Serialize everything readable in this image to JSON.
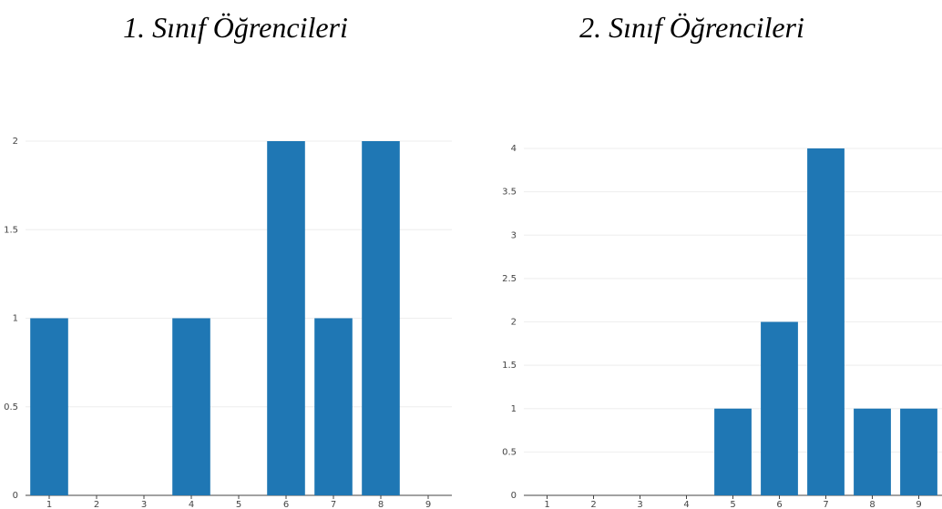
{
  "chart_data": [
    {
      "type": "bar",
      "title": "1. Sınıf Öğrencileri",
      "categories": [
        "1",
        "2",
        "3",
        "4",
        "5",
        "6",
        "7",
        "8",
        "9"
      ],
      "values": [
        1,
        0,
        0,
        1,
        0,
        2,
        1,
        2,
        0
      ],
      "ylim": [
        0,
        2
      ],
      "yticks": [
        "0",
        "0.5",
        "1",
        "1.5",
        "2"
      ],
      "bar_color": "#1f77b4",
      "grid": true,
      "xlabel": "",
      "ylabel": ""
    },
    {
      "type": "bar",
      "title": "2. Sınıf Öğrencileri",
      "categories": [
        "1",
        "2",
        "3",
        "4",
        "5",
        "6",
        "7",
        "8",
        "9"
      ],
      "values": [
        0,
        0,
        0,
        0,
        1,
        2,
        4,
        1,
        1
      ],
      "ylim": [
        0,
        4
      ],
      "yticks": [
        "0",
        "0.5",
        "1",
        "1.5",
        "2",
        "2.5",
        "3",
        "3.5",
        "4"
      ],
      "bar_color": "#1f77b4",
      "grid": true,
      "xlabel": "",
      "ylabel": ""
    }
  ]
}
